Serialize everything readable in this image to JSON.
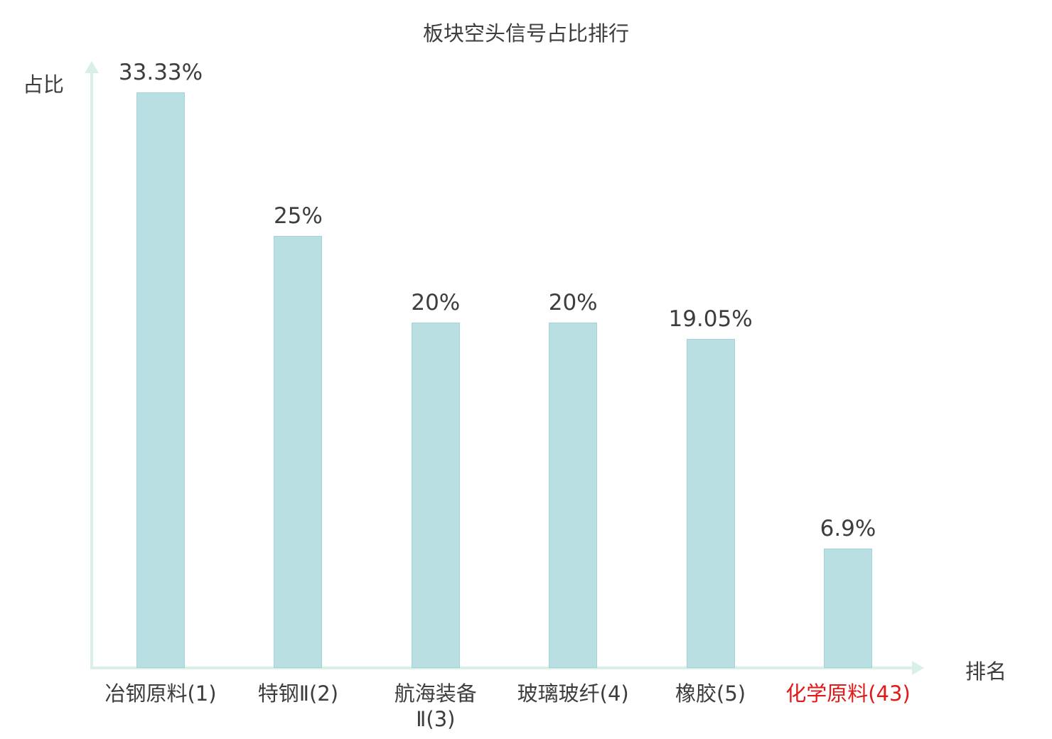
{
  "chart_data": {
    "type": "bar",
    "title": "板块空头信号占比排行",
    "xlabel": "排名",
    "ylabel": "占比",
    "ylim": [
      0,
      33.33
    ],
    "grid": false,
    "legend_position": "none",
    "categories": [
      "冶钢原料(1)",
      "特钢Ⅱ(2)",
      "航海装备Ⅱ(3)",
      "玻璃玻纤(4)",
      "橡胶(5)",
      "化学原料(43)"
    ],
    "category_lines": [
      [
        "冶钢原料(1)"
      ],
      [
        "特钢Ⅱ(2)"
      ],
      [
        "航海装备",
        "Ⅱ(3)"
      ],
      [
        "玻璃玻纤(4)"
      ],
      [
        "橡胶(5)"
      ],
      [
        "化学原料(43)"
      ]
    ],
    "values": [
      33.33,
      25,
      20,
      20,
      19.05,
      6.9
    ],
    "value_labels": [
      "33.33%",
      "25%",
      "20%",
      "20%",
      "19.05%",
      "6.9%"
    ],
    "highlight_index": 5
  },
  "colors": {
    "bar_fill": "#b9dfe3",
    "bar_border": "#a3d2d8",
    "axis": "#d9f0e7",
    "text": "#3d3d3d",
    "highlight_label": "#e01919",
    "background": "#ffffff"
  }
}
